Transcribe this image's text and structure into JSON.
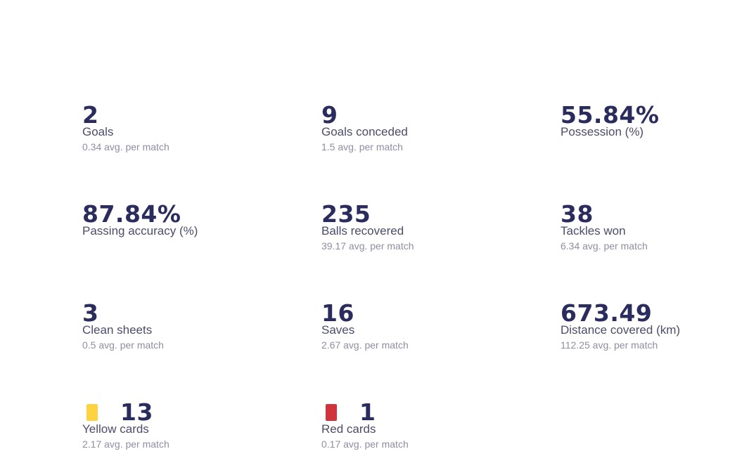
{
  "stats": [
    {
      "value": "2",
      "label": "Goals",
      "avg": "0.34 avg. per match"
    },
    {
      "value": "9",
      "label": "Goals conceded",
      "avg": "1.5 avg. per match"
    },
    {
      "value": "55.84%",
      "label": "Possession (%)",
      "avg": ""
    },
    {
      "value": "87.84%",
      "label": "Passing accuracy (%)",
      "avg": ""
    },
    {
      "value": "235",
      "label": "Balls recovered",
      "avg": "39.17 avg. per match"
    },
    {
      "value": "38",
      "label": "Tackles won",
      "avg": "6.34 avg. per match"
    },
    {
      "value": "3",
      "label": "Clean sheets",
      "avg": "0.5 avg. per match"
    },
    {
      "value": "16",
      "label": "Saves",
      "avg": "2.67 avg. per match"
    },
    {
      "value": "673.49",
      "label": "Distance covered (km)",
      "avg": "112.25 avg. per match"
    },
    {
      "value": "13",
      "label": "Yellow cards",
      "avg": "2.17 avg. per match",
      "icon": "yellow-card-icon",
      "icon_color": "#ffd23f"
    },
    {
      "value": "1",
      "label": "Red cards",
      "avg": "0.17 avg. per match",
      "icon": "red-card-icon",
      "icon_color": "#d0343a"
    }
  ],
  "colors": {
    "value": "#2b2c5e",
    "label": "#4b4c6a",
    "avg": "#8d8ea3",
    "background": "#ffffff"
  }
}
